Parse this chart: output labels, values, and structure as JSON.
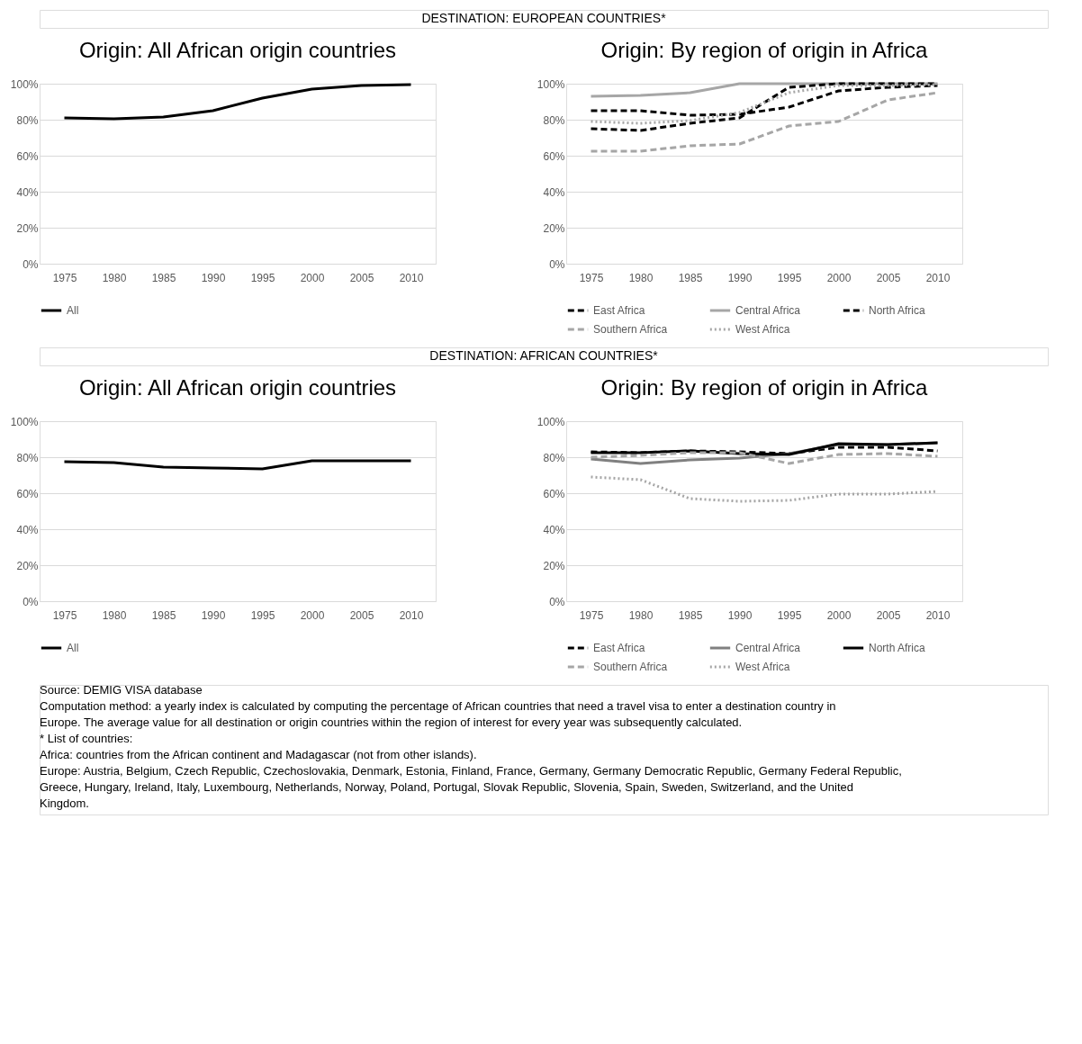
{
  "chart_data": [
    {
      "type": "line",
      "title": "Origin: All African origin countries",
      "annotations": [
        "DESTINATION: EUROPEAN COUNTRIES*"
      ],
      "categories": [
        "1975",
        "1980",
        "1985",
        "1990",
        "1995",
        "2000",
        "2005",
        "2010"
      ],
      "series": [
        {
          "name": "All",
          "color": "#000000",
          "line_style": "solid",
          "values": [
            81,
            80.5,
            81.5,
            85,
            92,
            97,
            99,
            99.5
          ]
        }
      ],
      "ylim": [
        0,
        100
      ],
      "yticks": [
        {
          "value": 0,
          "label": "0%"
        },
        {
          "value": 20,
          "label": "20%"
        },
        {
          "value": 40,
          "label": "40%"
        },
        {
          "value": 60,
          "label": "60%"
        },
        {
          "value": 80,
          "label": "80%"
        },
        {
          "value": 100,
          "label": "100%"
        }
      ],
      "grid": "y",
      "legend": "bottom",
      "marker": "none"
    },
    {
      "type": "line",
      "title": "Origin: By region of origin in Africa",
      "categories": [
        "1975",
        "1980",
        "1985",
        "1990",
        "1995",
        "2000",
        "2005",
        "2010"
      ],
      "series": [
        {
          "name": "East Africa",
          "color": "#000000",
          "line_style": "dashed",
          "values": [
            85,
            85,
            82.5,
            83,
            87,
            96,
            98,
            99
          ]
        },
        {
          "name": "Central Africa",
          "color": "#a6a6a6",
          "line_style": "solid",
          "values": [
            93,
            93.5,
            95,
            100,
            100,
            100,
            100,
            100
          ]
        },
        {
          "name": "North Africa",
          "color": "#000000",
          "line_style": "dashed",
          "values": [
            75,
            74,
            78,
            81,
            98,
            100,
            100,
            100
          ]
        },
        {
          "name": "Southern Africa",
          "color": "#a6a6a6",
          "line_style": "dashed",
          "values": [
            62.5,
            62.5,
            65.5,
            66.5,
            76.5,
            79,
            91,
            95
          ]
        },
        {
          "name": "West Africa",
          "color": "#a6a6a6",
          "line_style": "dotted",
          "values": [
            79,
            78,
            79.5,
            84,
            95,
            99,
            99,
            99.5
          ]
        }
      ],
      "ylim": [
        0,
        100
      ],
      "yticks": [
        {
          "value": 0,
          "label": "0%"
        },
        {
          "value": 20,
          "label": "20%"
        },
        {
          "value": 40,
          "label": "40%"
        },
        {
          "value": 60,
          "label": "60%"
        },
        {
          "value": 80,
          "label": "80%"
        },
        {
          "value": 100,
          "label": "100%"
        }
      ],
      "grid": "y",
      "legend": "bottom",
      "marker": "none"
    },
    {
      "type": "line",
      "title": "Origin: All African origin countries",
      "annotations": [
        "DESTINATION: AFRICAN COUNTRIES*"
      ],
      "categories": [
        "1975",
        "1980",
        "1985",
        "1990",
        "1995",
        "2000",
        "2005",
        "2010"
      ],
      "series": [
        {
          "name": "All",
          "color": "#000000",
          "line_style": "solid",
          "values": [
            77.5,
            77,
            74.5,
            74,
            73.5,
            78,
            78,
            78
          ]
        }
      ],
      "ylim": [
        0,
        100
      ],
      "yticks": [
        {
          "value": 0,
          "label": "0%"
        },
        {
          "value": 20,
          "label": "20%"
        },
        {
          "value": 40,
          "label": "40%"
        },
        {
          "value": 60,
          "label": "60%"
        },
        {
          "value": 80,
          "label": "80%"
        },
        {
          "value": 100,
          "label": "100%"
        }
      ],
      "grid": "y",
      "legend": "bottom",
      "marker": "none"
    },
    {
      "type": "line",
      "title": "Origin: By region of origin in Africa",
      "categories": [
        "1975",
        "1980",
        "1985",
        "1990",
        "1995",
        "2000",
        "2005",
        "2010"
      ],
      "series": [
        {
          "name": "East Africa",
          "color": "#000000",
          "line_style": "dashed",
          "values": [
            83,
            82.5,
            83.5,
            83,
            82,
            85.5,
            85.5,
            83.5
          ]
        },
        {
          "name": "Central Africa",
          "color": "#808080",
          "line_style": "solid",
          "values": [
            79,
            76.5,
            78.5,
            79.5,
            82,
            87,
            87,
            88
          ]
        },
        {
          "name": "North Africa",
          "color": "#000000",
          "line_style": "solid",
          "values": [
            82.5,
            82.5,
            83.5,
            82,
            81.5,
            87.5,
            87,
            88
          ]
        },
        {
          "name": "Southern Africa",
          "color": "#a6a6a6",
          "line_style": "dashed",
          "values": [
            80,
            81,
            82.5,
            82.5,
            76.5,
            81.5,
            82,
            80.5
          ]
        },
        {
          "name": "West Africa",
          "color": "#a6a6a6",
          "line_style": "dotted",
          "values": [
            69,
            67.5,
            57,
            55.5,
            56,
            59.5,
            59.5,
            61
          ]
        }
      ],
      "ylim": [
        0,
        100
      ],
      "yticks": [
        {
          "value": 0,
          "label": "0%"
        },
        {
          "value": 20,
          "label": "20%"
        },
        {
          "value": 40,
          "label": "40%"
        },
        {
          "value": 60,
          "label": "60%"
        },
        {
          "value": 80,
          "label": "80%"
        },
        {
          "value": 100,
          "label": "100%"
        }
      ],
      "grid": "y",
      "legend": "bottom",
      "marker": "none",
      "annotations": [
        "Source: DEMIG VISA database",
        "Computation method: a yearly index is calculated by computing the percentage of African countries that need a travel visa to enter a destination country in Europe. The average value for all destination or origin countries within the region of interest for every year was subsequently calculated.",
        "* List of countries:",
        "Africa: countries from the African continent and Madagascar (not from other islands).",
        "Europe: Austria, Belgium, Czech Republic, Czechoslovakia, Denmark, Estonia, Finland, France, Germany, Germany Democratic Republic, Germany Federal Republic, Greece, Hungary, Ireland, Italy, Luxembourg, Netherlands, Norway, Poland, Portugal, Slovak Republic, Slovenia, Spain, Sweden, Switzerland, and the United Kingdom."
      ]
    }
  ]
}
